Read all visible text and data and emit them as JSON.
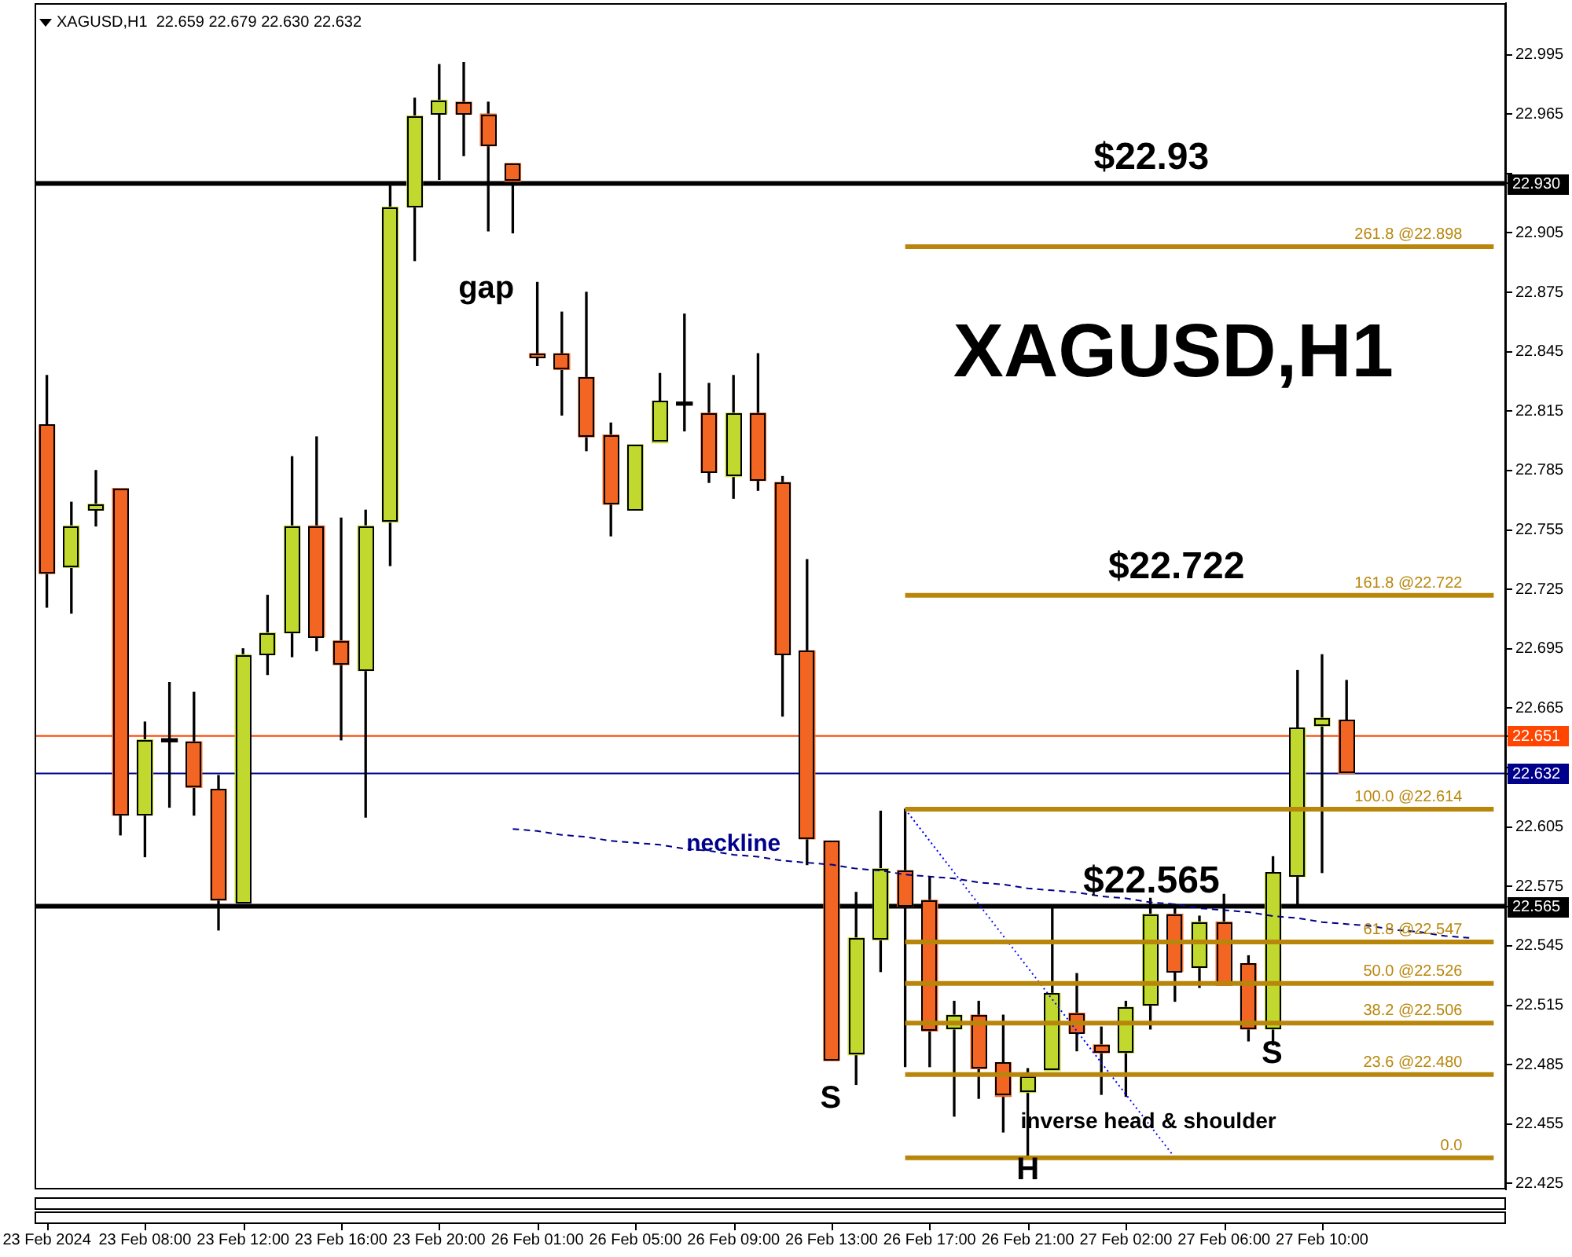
{
  "chart_data": {
    "type": "candlestick",
    "title": "XAGUSD,H1",
    "subtitle": "XAGUSD,H1  22.659 22.679 22.630 22.632",
    "categories": [
      "23 Feb 2024",
      null,
      null,
      null,
      "23 Feb 08:00",
      null,
      null,
      null,
      "23 Feb 12:00",
      null,
      null,
      null,
      "23 Feb 16:00",
      null,
      null,
      null,
      "23 Feb 20:00",
      null,
      null,
      null,
      "26 Feb 01:00",
      null,
      null,
      null,
      "26 Feb 05:00",
      null,
      null,
      null,
      "26 Feb 09:00",
      null,
      null,
      null,
      "26 Feb 13:00",
      null,
      null,
      null,
      "26 Feb 17:00",
      null,
      null,
      null,
      "26 Feb 21:00",
      null,
      null,
      null,
      "27 Feb 02:00",
      null,
      null,
      null,
      "27 Feb 06:00",
      null,
      null,
      null,
      "27 Feb 10:00",
      null,
      null,
      null,
      null,
      null,
      null,
      null
    ],
    "ohlc": [
      [
        22.808,
        22.833,
        22.716,
        22.733
      ],
      [
        22.736,
        22.769,
        22.713,
        22.757
      ],
      [
        22.765,
        22.785,
        22.757,
        22.768
      ],
      [
        22.776,
        22.776,
        22.601,
        22.611
      ],
      [
        22.611,
        22.658,
        22.59,
        22.649
      ],
      [
        22.648,
        22.678,
        22.615,
        22.648
      ],
      [
        22.648,
        22.673,
        22.611,
        22.625
      ],
      [
        22.624,
        22.631,
        22.553,
        22.568
      ],
      [
        22.567,
        22.695,
        22.566,
        22.692
      ],
      [
        22.692,
        22.722,
        22.682,
        22.703
      ],
      [
        22.703,
        22.792,
        22.691,
        22.757
      ],
      [
        22.757,
        22.802,
        22.694,
        22.701
      ],
      [
        22.699,
        22.761,
        22.649,
        22.687
      ],
      [
        22.684,
        22.765,
        22.61,
        22.757
      ],
      [
        22.759,
        22.929,
        22.737,
        22.918
      ],
      [
        22.918,
        22.973,
        22.891,
        22.964
      ],
      [
        22.965,
        22.99,
        22.932,
        22.972
      ],
      [
        22.971,
        22.991,
        22.944,
        22.965
      ],
      [
        22.965,
        22.971,
        22.906,
        22.949
      ],
      [
        22.94,
        22.941,
        22.905,
        22.931
      ],
      [
        22.844,
        22.88,
        22.838,
        22.842
      ],
      [
        22.844,
        22.865,
        22.813,
        22.836
      ],
      [
        22.832,
        22.875,
        22.795,
        22.802
      ],
      [
        22.803,
        22.809,
        22.752,
        22.768
      ],
      [
        22.765,
        22.799,
        22.763,
        22.798
      ],
      [
        22.799,
        22.834,
        22.797,
        22.82
      ],
      [
        22.818,
        22.864,
        22.805,
        22.818
      ],
      [
        22.814,
        22.829,
        22.779,
        22.784
      ],
      [
        22.782,
        22.833,
        22.771,
        22.814
      ],
      [
        22.814,
        22.844,
        22.775,
        22.78
      ],
      [
        22.779,
        22.782,
        22.661,
        22.692
      ],
      [
        22.694,
        22.74,
        22.586,
        22.599
      ],
      [
        22.598,
        22.599,
        22.486,
        22.487
      ],
      [
        22.49,
        22.572,
        22.475,
        22.549
      ],
      [
        22.548,
        22.613,
        22.532,
        22.584
      ],
      [
        22.583,
        22.614,
        22.484,
        22.565
      ],
      [
        22.568,
        22.58,
        22.484,
        22.502
      ],
      [
        22.503,
        22.517,
        22.459,
        22.51
      ],
      [
        22.51,
        22.517,
        22.468,
        22.483
      ],
      [
        22.486,
        22.51,
        22.451,
        22.469
      ],
      [
        22.471,
        22.483,
        22.438,
        22.479
      ],
      [
        22.482,
        22.564,
        22.481,
        22.521
      ],
      [
        22.511,
        22.531,
        22.492,
        22.501
      ],
      [
        22.495,
        22.504,
        22.47,
        22.491
      ],
      [
        22.491,
        22.517,
        22.469,
        22.514
      ],
      [
        22.515,
        22.569,
        22.503,
        22.561
      ],
      [
        22.561,
        22.566,
        22.517,
        22.532
      ],
      [
        22.534,
        22.56,
        22.524,
        22.557
      ],
      [
        22.557,
        22.571,
        22.524,
        22.525
      ],
      [
        22.536,
        22.54,
        22.497,
        22.503
      ],
      [
        22.503,
        22.59,
        22.495,
        22.582
      ],
      [
        22.58,
        22.684,
        22.565,
        22.655
      ],
      [
        22.656,
        22.692,
        22.582,
        22.66
      ],
      [
        22.659,
        22.679,
        22.63,
        22.632
      ],
      null,
      null,
      null,
      null,
      null,
      null
    ],
    "colors": [
      "#f26522",
      "#c1d82f",
      "#c1d82f",
      "#f26522",
      "#c1d82f",
      "#000000",
      "#f26522",
      "#f26522",
      "#c1d82f",
      "#c1d82f",
      "#c1d82f",
      "#f26522",
      "#f26522",
      "#c1d82f",
      "#c1d82f",
      "#c1d82f",
      "#c1d82f",
      "#f26522",
      "#f26522",
      "#f26522",
      "#f26522",
      "#f26522",
      "#f26522",
      "#f26522",
      "#c1d82f",
      "#c1d82f",
      "#000000",
      "#f26522",
      "#c1d82f",
      "#f26522",
      "#f26522",
      "#f26522",
      "#f26522",
      "#c1d82f",
      "#c1d82f",
      "#f26522",
      "#f26522",
      "#c1d82f",
      "#f26522",
      "#f26522",
      "#c1d82f",
      "#c1d82f",
      "#f26522",
      "#f26522",
      "#c1d82f",
      "#c1d82f",
      "#f26522",
      "#c1d82f",
      "#f26522",
      "#f26522",
      "#c1d82f",
      "#c1d82f",
      "#c1d82f",
      "#f26522",
      null,
      null,
      null,
      null,
      null,
      null
    ],
    "series": [
      {
        "type": "line",
        "name": "261.8 @22.898",
        "color": "#b8860b",
        "values": [
          null,
          null,
          null,
          null,
          null,
          null,
          null,
          null,
          null,
          null,
          null,
          null,
          null,
          null,
          null,
          null,
          null,
          null,
          null,
          null,
          null,
          null,
          null,
          null,
          null,
          null,
          null,
          null,
          null,
          null,
          null,
          null,
          null,
          null,
          null,
          22.898,
          22.898,
          22.898,
          22.898,
          22.898,
          22.898,
          22.898,
          22.898,
          22.898,
          22.898,
          22.898,
          22.898,
          22.898,
          22.898,
          22.898,
          22.898,
          22.898,
          22.898,
          22.898,
          22.898,
          22.898,
          22.898,
          22.898,
          22.898,
          22.898
        ]
      },
      {
        "type": "line",
        "name": "161.8 @22.722",
        "color": "#b8860b",
        "values": [
          null,
          null,
          null,
          null,
          null,
          null,
          null,
          null,
          null,
          null,
          null,
          null,
          null,
          null,
          null,
          null,
          null,
          null,
          null,
          null,
          null,
          null,
          null,
          null,
          null,
          null,
          null,
          null,
          null,
          null,
          null,
          null,
          null,
          null,
          null,
          22.722,
          22.722,
          22.722,
          22.722,
          22.722,
          22.722,
          22.722,
          22.722,
          22.722,
          22.722,
          22.722,
          22.722,
          22.722,
          22.722,
          22.722,
          22.722,
          22.722,
          22.722,
          22.722,
          22.722,
          22.722,
          22.722,
          22.722,
          22.722,
          22.722
        ]
      },
      {
        "type": "line",
        "name": "100.0 @22.614",
        "color": "#b8860b",
        "values": [
          null,
          null,
          null,
          null,
          null,
          null,
          null,
          null,
          null,
          null,
          null,
          null,
          null,
          null,
          null,
          null,
          null,
          null,
          null,
          null,
          null,
          null,
          null,
          null,
          null,
          null,
          null,
          null,
          null,
          null,
          null,
          null,
          null,
          null,
          null,
          22.614,
          22.614,
          22.614,
          22.614,
          22.614,
          22.614,
          22.614,
          22.614,
          22.614,
          22.614,
          22.614,
          22.614,
          22.614,
          22.614,
          22.614,
          22.614,
          22.614,
          22.614,
          22.614,
          22.614,
          22.614,
          22.614,
          22.614,
          22.614,
          22.614
        ]
      },
      {
        "type": "line",
        "name": "61.8 @22.547",
        "color": "#b8860b",
        "values": [
          null,
          null,
          null,
          null,
          null,
          null,
          null,
          null,
          null,
          null,
          null,
          null,
          null,
          null,
          null,
          null,
          null,
          null,
          null,
          null,
          null,
          null,
          null,
          null,
          null,
          null,
          null,
          null,
          null,
          null,
          null,
          null,
          null,
          null,
          null,
          22.547,
          22.547,
          22.547,
          22.547,
          22.547,
          22.547,
          22.547,
          22.547,
          22.547,
          22.547,
          22.547,
          22.547,
          22.547,
          22.547,
          22.547,
          22.547,
          22.547,
          22.547,
          22.547,
          22.547,
          22.547,
          22.547,
          22.547,
          22.547,
          22.547
        ]
      },
      {
        "type": "line",
        "name": "50.0 @22.526",
        "color": "#b8860b",
        "values": [
          null,
          null,
          null,
          null,
          null,
          null,
          null,
          null,
          null,
          null,
          null,
          null,
          null,
          null,
          null,
          null,
          null,
          null,
          null,
          null,
          null,
          null,
          null,
          null,
          null,
          null,
          null,
          null,
          null,
          null,
          null,
          null,
          null,
          null,
          null,
          22.526,
          22.526,
          22.526,
          22.526,
          22.526,
          22.526,
          22.526,
          22.526,
          22.526,
          22.526,
          22.526,
          22.526,
          22.526,
          22.526,
          22.526,
          22.526,
          22.526,
          22.526,
          22.526,
          22.526,
          22.526,
          22.526,
          22.526,
          22.526,
          22.526
        ]
      },
      {
        "type": "line",
        "name": "38.2 @22.506",
        "color": "#b8860b",
        "values": [
          null,
          null,
          null,
          null,
          null,
          null,
          null,
          null,
          null,
          null,
          null,
          null,
          null,
          null,
          null,
          null,
          null,
          null,
          null,
          null,
          null,
          null,
          null,
          null,
          null,
          null,
          null,
          null,
          null,
          null,
          null,
          null,
          null,
          null,
          null,
          22.506,
          22.506,
          22.506,
          22.506,
          22.506,
          22.506,
          22.506,
          22.506,
          22.506,
          22.506,
          22.506,
          22.506,
          22.506,
          22.506,
          22.506,
          22.506,
          22.506,
          22.506,
          22.506,
          22.506,
          22.506,
          22.506,
          22.506,
          22.506,
          22.506
        ]
      },
      {
        "type": "line",
        "name": "23.6 @22.480",
        "color": "#b8860b",
        "values": [
          null,
          null,
          null,
          null,
          null,
          null,
          null,
          null,
          null,
          null,
          null,
          null,
          null,
          null,
          null,
          null,
          null,
          null,
          null,
          null,
          null,
          null,
          null,
          null,
          null,
          null,
          null,
          null,
          null,
          null,
          null,
          null,
          null,
          null,
          null,
          22.48,
          22.48,
          22.48,
          22.48,
          22.48,
          22.48,
          22.48,
          22.48,
          22.48,
          22.48,
          22.48,
          22.48,
          22.48,
          22.48,
          22.48,
          22.48,
          22.48,
          22.48,
          22.48,
          22.48,
          22.48,
          22.48,
          22.48,
          22.48,
          22.48
        ]
      },
      {
        "type": "line",
        "name": "0.0",
        "color": "#b8860b",
        "values": [
          null,
          null,
          null,
          null,
          null,
          null,
          null,
          null,
          null,
          null,
          null,
          null,
          null,
          null,
          null,
          null,
          null,
          null,
          null,
          null,
          null,
          null,
          null,
          null,
          null,
          null,
          null,
          null,
          null,
          null,
          null,
          null,
          null,
          null,
          null,
          22.438,
          22.438,
          22.438,
          22.438,
          22.438,
          22.438,
          22.438,
          22.438,
          22.438,
          22.438,
          22.438,
          22.438,
          22.438,
          22.438,
          22.438,
          22.438,
          22.438,
          22.438,
          22.438,
          22.438,
          22.438,
          22.438,
          22.438,
          22.438,
          22.438
        ]
      },
      {
        "type": "line",
        "name": "neckline",
        "color": "#00008b",
        "line_style": "dashed",
        "values": [
          null,
          null,
          null,
          null,
          null,
          null,
          null,
          null,
          null,
          null,
          null,
          null,
          null,
          null,
          null,
          null,
          null,
          null,
          null,
          22.604,
          22.603,
          22.601,
          22.6,
          22.598,
          22.597,
          22.596,
          22.594,
          22.593,
          22.591,
          22.59,
          22.588,
          22.587,
          22.586,
          22.584,
          22.583,
          22.581,
          22.58,
          22.579,
          22.577,
          22.576,
          22.574,
          22.573,
          22.572,
          22.57,
          22.569,
          22.567,
          22.566,
          22.564,
          22.563,
          22.562,
          22.56,
          22.559,
          22.557,
          22.556,
          22.555,
          22.553,
          22.552,
          22.55,
          22.549,
          null
        ]
      },
      {
        "type": "line",
        "color": "#0000ff",
        "line_style": "dotted",
        "values": [
          null,
          null,
          null,
          null,
          null,
          null,
          null,
          null,
          null,
          null,
          null,
          null,
          null,
          null,
          null,
          null,
          null,
          null,
          null,
          null,
          null,
          null,
          null,
          null,
          null,
          null,
          null,
          null,
          null,
          null,
          null,
          null,
          null,
          null,
          null,
          22.614,
          22.598,
          22.582,
          22.566,
          22.55,
          22.534,
          22.518,
          22.502,
          22.486,
          22.47,
          22.454,
          22.438,
          null,
          null,
          null,
          null,
          null,
          null,
          null,
          null,
          null,
          null,
          null,
          null,
          null
        ]
      }
    ],
    "ref_lines": [
      {
        "axis": "y",
        "value": 22.93,
        "label": "$22.93",
        "color": "#000000"
      },
      {
        "axis": "y",
        "value": 22.565,
        "label": "$22.565",
        "color": "#000000"
      },
      {
        "axis": "y",
        "value": 22.651,
        "color": "#ff4500"
      },
      {
        "axis": "y",
        "value": 22.632,
        "color": "#00008b"
      }
    ],
    "annotations": [
      "gap",
      {
        "text": "$22.722",
        "y": 22.722
      },
      "S",
      "inverse head & shoulder",
      "H",
      "S"
    ],
    "ylim": [
      22.422,
      23.021
    ],
    "yticks": [
      22.425,
      22.455,
      22.485,
      22.515,
      22.545,
      22.565,
      22.575,
      22.605,
      22.632,
      {
        "value": 22.635,
        "label": null
      },
      22.651,
      22.665,
      22.695,
      22.725,
      22.755,
      22.785,
      22.815,
      22.845,
      22.875,
      22.905,
      {
        "value": 22.93,
        "label": "22.930"
      },
      {
        "value": 22.935,
        "label": null
      },
      22.965,
      22.995
    ]
  }
}
